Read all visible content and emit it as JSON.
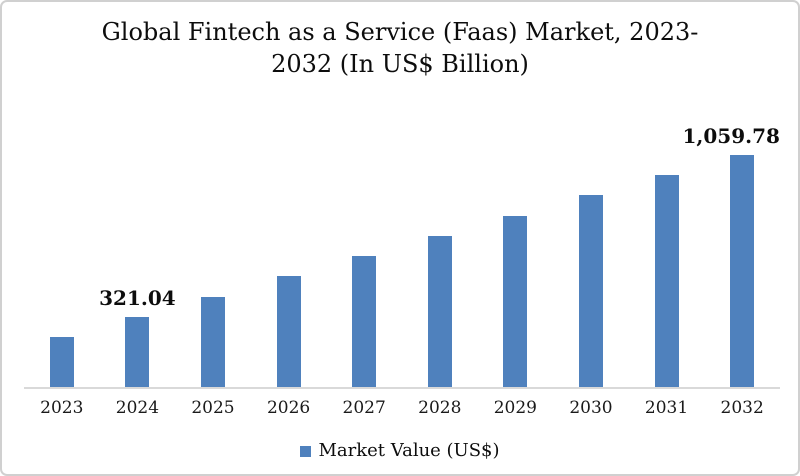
{
  "window": {
    "background": "#ffffff",
    "border_color": "#d0d0d0"
  },
  "chart_data": {
    "type": "bar",
    "title": "Global Fintech as a Service (Faas) Market, 2023-2032 (In US$ Billion)",
    "xlabel": "",
    "ylabel": "",
    "categories": [
      "2023",
      "2024",
      "2025",
      "2026",
      "2027",
      "2028",
      "2029",
      "2030",
      "2031",
      "2032"
    ],
    "series": [
      {
        "name": "Market Value (US$)",
        "values": [
          228.7,
          321.04,
          413.38,
          505.73,
          598.07,
          690.41,
          782.75,
          875.1,
          967.44,
          1059.78
        ]
      }
    ],
    "data_labels": [
      "",
      "321.04",
      "",
      "",
      "",
      "",
      "",
      "",
      "",
      "1,059.78"
    ],
    "ylim": [
      0,
      1100
    ],
    "grid": false,
    "y_axis_visible": false,
    "legend_position": "bottom",
    "legend": {
      "items": [
        {
          "label": "Market Value (US$)",
          "swatch_color": "#4f81bd"
        }
      ]
    },
    "colors": {
      "bar": "#4f81bd",
      "axis_line": "#d9d9d9",
      "text": "#111111"
    }
  }
}
